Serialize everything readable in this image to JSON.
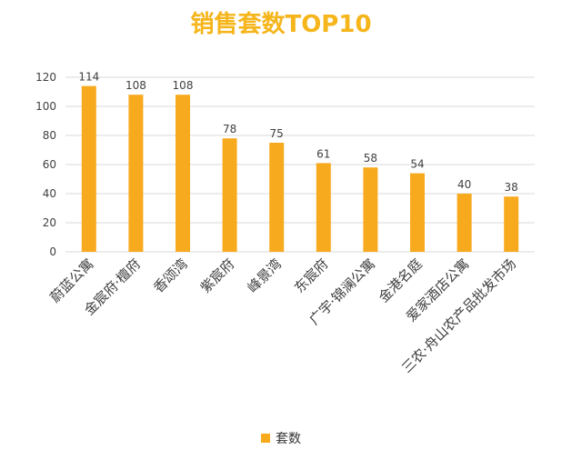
{
  "chart_data": {
    "type": "bar",
    "title": "销售套数TOP10",
    "categories": [
      "蔚蓝公寓",
      "金宸府·檀府",
      "香颂湾",
      "紫宸府",
      "峰景湾",
      "东宸府",
      "广宇·锦澜公寓",
      "金港名庭",
      "爱家酒店公寓",
      "三农·舟山农产品批发市场"
    ],
    "series": [
      {
        "name": "套数",
        "values": [
          114,
          108,
          108,
          78,
          75,
          61,
          58,
          54,
          40,
          38
        ],
        "color": "#F8AA1E"
      }
    ],
    "ylim": [
      0,
      120
    ],
    "yticks": [
      0,
      20,
      40,
      60,
      80,
      100,
      120
    ],
    "xlabel": "",
    "ylabel": "",
    "grid": true,
    "legend_position": "bottom",
    "title_color": "#F5B51B",
    "grid_color": "#D9D9D9",
    "axis_text_color": "#404040"
  }
}
